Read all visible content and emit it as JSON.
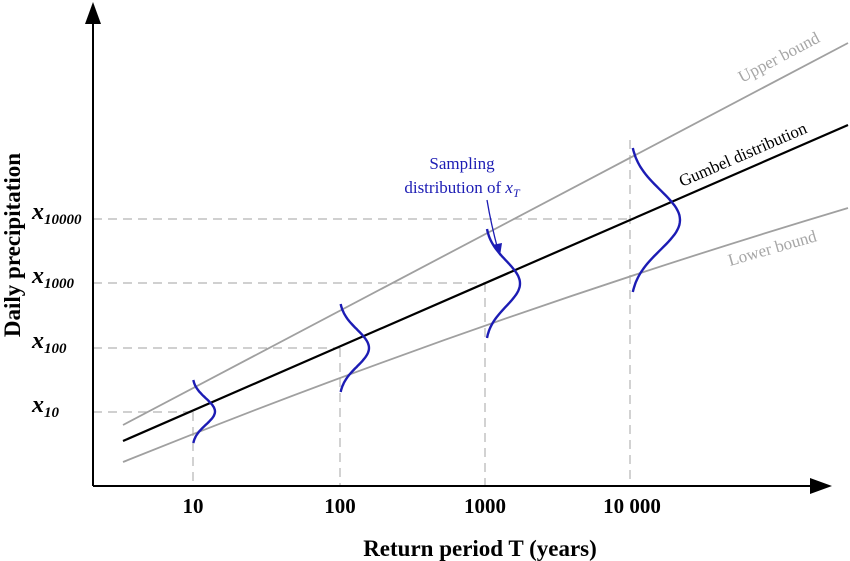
{
  "axes": {
    "x_title": "Return period T (years)",
    "y_title": "Daily precipitation",
    "x_ticks": [
      "10",
      "100",
      "1000",
      "10 000"
    ],
    "y_ticks": [
      {
        "main": "x",
        "sub": "10"
      },
      {
        "main": "x",
        "sub": "100"
      },
      {
        "main": "x",
        "sub": "1000"
      },
      {
        "main": "x",
        "sub": "10000"
      }
    ]
  },
  "lines": {
    "upper_label": "Upper bound",
    "gumbel_label": "Gumbel distribution",
    "lower_label": "Lower bound"
  },
  "annotation": {
    "line1": "Sampling",
    "line2_prefix": "distribution of ",
    "symbol_main": "x",
    "symbol_sub": "T"
  },
  "colors": {
    "axis": "#000000",
    "guide": "#b3b3b3",
    "bounds": "#a0a0a0",
    "gumbel": "#000000",
    "sampling": "#1c1cb4"
  }
}
